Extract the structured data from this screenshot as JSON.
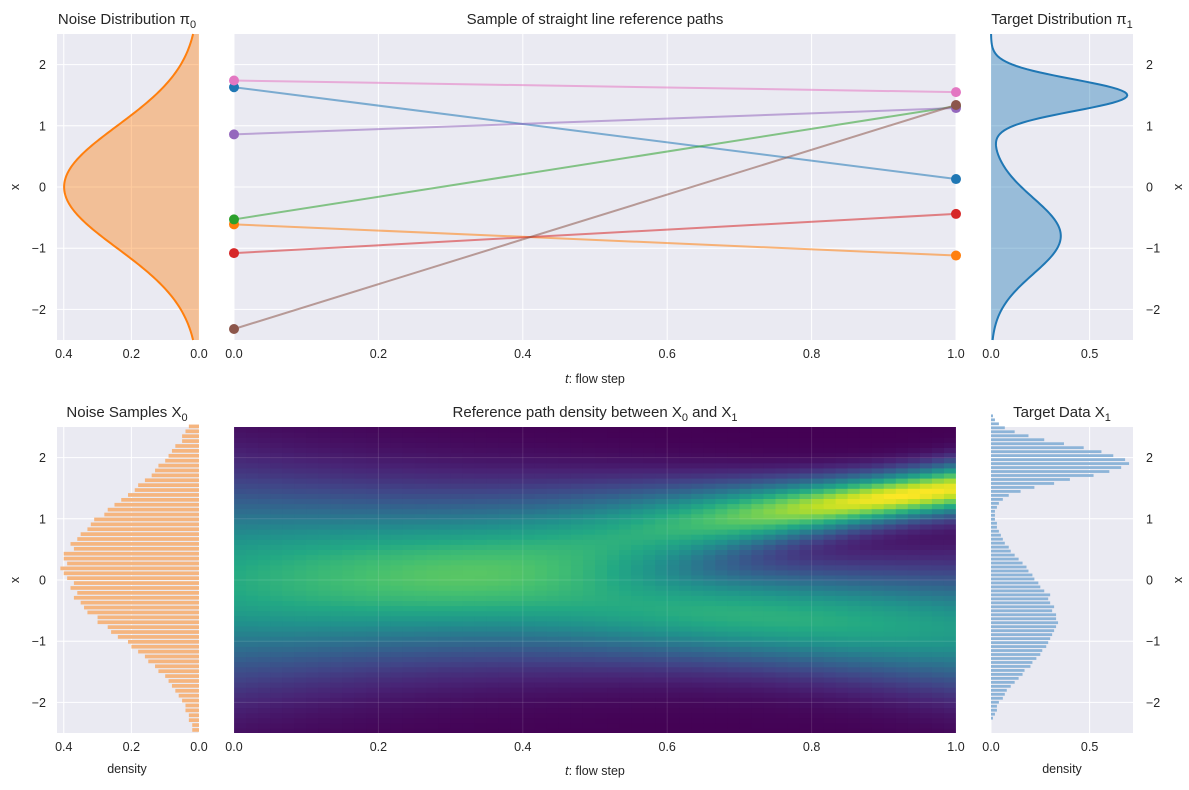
{
  "chart_data": [
    {
      "id": "noise-distribution",
      "type": "area",
      "title": "Noise Distribution π",
      "title_sub": "0",
      "ylabel": "x",
      "xlim": [
        0.42,
        0.0
      ],
      "ylim": [
        -2.5,
        2.5
      ],
      "xticks": [
        0.4,
        0.2,
        0.0
      ],
      "xtick_labels": [
        "0.4",
        "0.2",
        "0.0"
      ],
      "yticks": [
        -2,
        -1,
        0,
        1,
        2
      ],
      "ytick_labels": [
        "−2",
        "−1",
        "0",
        "1",
        "2"
      ],
      "density": {
        "kind": "gaussian",
        "mean": 0.0,
        "std": 1.0
      },
      "color": "#ff7f0e",
      "grid": true
    },
    {
      "id": "reference-paths",
      "type": "line",
      "title": "Sample of straight line reference paths",
      "xlabel_var": "t",
      "xlabel": ": flow step",
      "xlim": [
        0.0,
        1.0
      ],
      "ylim": [
        -2.5,
        2.5
      ],
      "xticks": [
        0.0,
        0.2,
        0.4,
        0.6,
        0.8,
        1.0
      ],
      "xtick_labels": [
        "0.0",
        "0.2",
        "0.4",
        "0.6",
        "0.8",
        "1.0"
      ],
      "series": [
        {
          "x": [
            0,
            1
          ],
          "y": [
            1.63,
            0.13
          ],
          "color": "#1f77b4"
        },
        {
          "x": [
            0,
            1
          ],
          "y": [
            -0.61,
            -1.12
          ],
          "color": "#ff7f0e"
        },
        {
          "x": [
            0,
            1
          ],
          "y": [
            -0.53,
            1.32
          ],
          "color": "#2ca02c"
        },
        {
          "x": [
            0,
            1
          ],
          "y": [
            -1.08,
            -0.44
          ],
          "color": "#d62728"
        },
        {
          "x": [
            0,
            1
          ],
          "y": [
            0.86,
            1.29
          ],
          "color": "#9467bd"
        },
        {
          "x": [
            0,
            1
          ],
          "y": [
            -2.32,
            1.34
          ],
          "color": "#8c564b"
        },
        {
          "x": [
            0,
            1
          ],
          "y": [
            1.74,
            1.55
          ],
          "color": "#e377c2"
        }
      ],
      "grid": true
    },
    {
      "id": "target-distribution",
      "type": "area",
      "title": "Target Distribution π",
      "title_sub": "1",
      "ylabel": "x",
      "xlim": [
        0.0,
        0.72
      ],
      "ylim": [
        -2.5,
        2.5
      ],
      "xticks": [
        0.0,
        0.5
      ],
      "xtick_labels": [
        "0.0",
        "0.5"
      ],
      "yticks": [
        -2,
        -1,
        0,
        1,
        2
      ],
      "ytick_labels": [
        "−2",
        "−1",
        "0",
        "1",
        "2"
      ],
      "density": {
        "kind": "mixture",
        "components": [
          {
            "weight": 0.45,
            "mean": 1.5,
            "std": 0.26
          },
          {
            "weight": 0.55,
            "mean": -0.8,
            "std": 0.62
          }
        ]
      },
      "color": "#1f77b4",
      "grid": true
    },
    {
      "id": "noise-samples",
      "type": "bar",
      "title": "Noise Samples X",
      "title_sub": "0",
      "xlabel": "density",
      "ylabel": "x",
      "xlim": [
        0.42,
        0.0
      ],
      "ylim": [
        -2.5,
        2.5
      ],
      "xticks": [
        0.4,
        0.2,
        0.0
      ],
      "xtick_labels": [
        "0.4",
        "0.2",
        "0.0"
      ],
      "yticks": [
        -2,
        -1,
        0,
        1,
        2
      ],
      "ytick_labels": [
        "−2",
        "−1",
        "0",
        "1",
        "2"
      ],
      "bins": {
        "start": -2.5,
        "width": 0.08
      },
      "values": [
        0.02,
        0.02,
        0.03,
        0.03,
        0.04,
        0.04,
        0.05,
        0.06,
        0.07,
        0.08,
        0.09,
        0.1,
        0.12,
        0.13,
        0.15,
        0.16,
        0.18,
        0.2,
        0.21,
        0.24,
        0.26,
        0.27,
        0.3,
        0.3,
        0.33,
        0.34,
        0.35,
        0.37,
        0.36,
        0.38,
        0.37,
        0.39,
        0.4,
        0.41,
        0.39,
        0.4,
        0.4,
        0.37,
        0.38,
        0.36,
        0.35,
        0.33,
        0.32,
        0.31,
        0.28,
        0.27,
        0.25,
        0.23,
        0.21,
        0.19,
        0.18,
        0.16,
        0.14,
        0.13,
        0.12,
        0.1,
        0.09,
        0.08,
        0.07,
        0.05,
        0.05,
        0.04,
        0.03
      ],
      "color": "#f5b57f",
      "grid": true
    },
    {
      "id": "path-density",
      "type": "heatmap",
      "title": "Reference path density between X",
      "title_sub_a": "0",
      "title_mid": " and X",
      "title_sub_b": "1",
      "xlabel_var": "t",
      "xlabel": ": flow step",
      "xlim": [
        0.0,
        1.0
      ],
      "ylim": [
        -2.5,
        2.5
      ],
      "xticks": [
        0.0,
        0.2,
        0.4,
        0.6,
        0.8,
        1.0
      ],
      "xtick_labels": [
        "0.0",
        "0.2",
        "0.4",
        "0.6",
        "0.8",
        "1.0"
      ],
      "colormap": "viridis",
      "colormap_stops": [
        "#440154",
        "#482475",
        "#414487",
        "#355f8d",
        "#2a788e",
        "#21918c",
        "#22a884",
        "#44bf70",
        "#7ad151",
        "#bddf26",
        "#fde725"
      ],
      "grid": true
    },
    {
      "id": "target-data",
      "type": "bar",
      "title": "Target Data X",
      "title_sub": "1",
      "xlabel": "density",
      "ylabel": "x",
      "xlim": [
        0.0,
        0.72
      ],
      "ylim": [
        -2.5,
        2.5
      ],
      "xticks": [
        0.0,
        0.5
      ],
      "xtick_labels": [
        "0.0",
        "0.5"
      ],
      "yticks": [
        -2,
        -1,
        0,
        1,
        2
      ],
      "ytick_labels": [
        "−2",
        "−1",
        "0",
        "1",
        "2"
      ],
      "bins": {
        "start": -2.3,
        "width": 0.065
      },
      "values": [
        0.01,
        0.02,
        0.03,
        0.03,
        0.04,
        0.06,
        0.07,
        0.08,
        0.1,
        0.12,
        0.14,
        0.16,
        0.17,
        0.2,
        0.21,
        0.23,
        0.25,
        0.26,
        0.28,
        0.29,
        0.3,
        0.31,
        0.32,
        0.33,
        0.34,
        0.33,
        0.33,
        0.31,
        0.32,
        0.3,
        0.29,
        0.3,
        0.27,
        0.25,
        0.24,
        0.22,
        0.21,
        0.19,
        0.18,
        0.16,
        0.14,
        0.12,
        0.1,
        0.09,
        0.07,
        0.06,
        0.05,
        0.04,
        0.03,
        0.03,
        0.02,
        0.02,
        0.02,
        0.03,
        0.04,
        0.06,
        0.09,
        0.15,
        0.22,
        0.32,
        0.4,
        0.52,
        0.6,
        0.66,
        0.7,
        0.68,
        0.62,
        0.56,
        0.47,
        0.37,
        0.27,
        0.19,
        0.12,
        0.07,
        0.04,
        0.02,
        0.01
      ],
      "color": "#8db4d8",
      "grid": true
    }
  ]
}
